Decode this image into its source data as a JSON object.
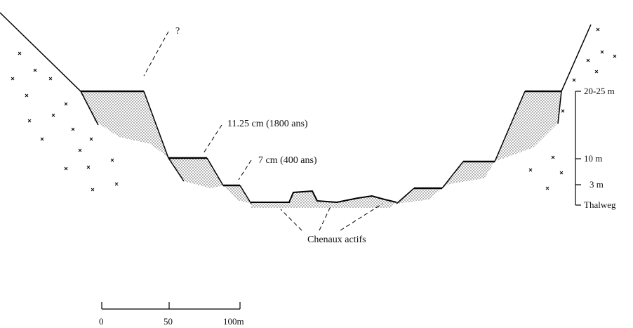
{
  "labels": {
    "question": "?",
    "terrace_high": "11.25 cm (1800 ans)",
    "terrace_low": "7 cm (400 ans)",
    "channels": "Chenaux actifs"
  },
  "height_scale": [
    "20-25 m",
    "10 m",
    "3 m",
    "Thalweg"
  ],
  "distance_scale": [
    "0",
    "50",
    "100m"
  ]
}
